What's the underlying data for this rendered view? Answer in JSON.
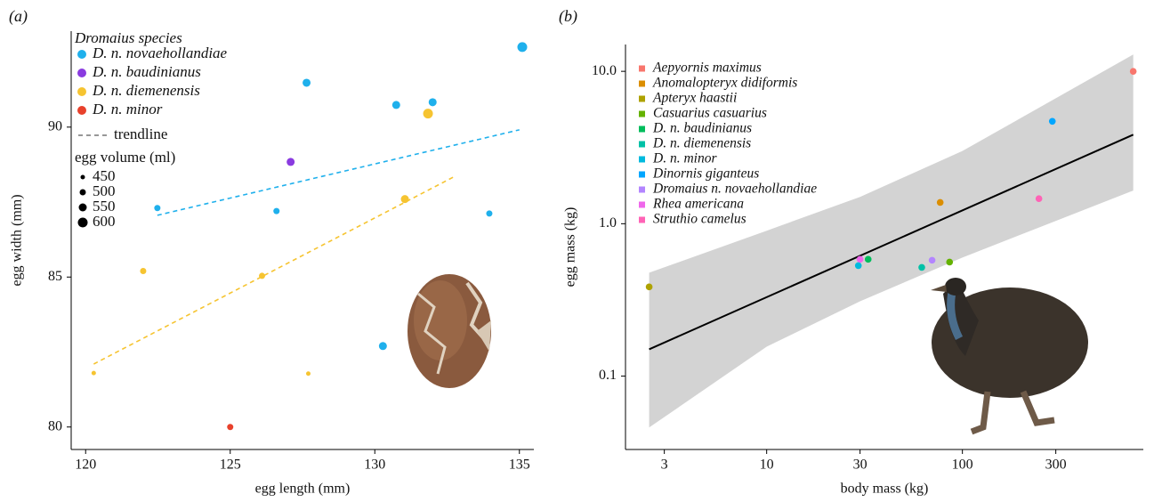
{
  "chart_data": [
    {
      "type": "scatter",
      "panel_label": "(a)",
      "x_label": "egg length (mm)",
      "y_label": "egg width (mm)",
      "xlim": [
        119.5,
        135.5
      ],
      "xticks": [
        120,
        125,
        130,
        135
      ],
      "ylim": [
        79.25,
        93.2
      ],
      "yticks": [
        80,
        85,
        90
      ],
      "legend_title": "Dromaius species",
      "trendline_label": "trendline",
      "series": [
        {
          "name": "D. n. novaehollandiae",
          "color": "#1fb0ec",
          "x": [
            135.1,
            127.64,
            130.74,
            132.0,
            122.48,
            126.6,
            133.96,
            130.28
          ],
          "values": [
            92.67,
            91.48,
            90.74,
            90.83,
            87.3,
            87.2,
            87.12,
            82.7
          ],
          "sizes": [
            600,
            550,
            550,
            550,
            500,
            500,
            500,
            550
          ],
          "trendline": {
            "x": [
              122.48,
              135.0
            ],
            "values": [
              87.06,
              89.91
            ]
          }
        },
        {
          "name": "D. n. baudinianus",
          "color": "#8a3be0",
          "x": [
            127.09
          ],
          "values": [
            88.84
          ],
          "sizes": [
            550
          ]
        },
        {
          "name": "D. n. diemenensis",
          "color": "#f6c431",
          "x": [
            131.84,
            131.04,
            126.1,
            121.99,
            127.7,
            120.28
          ],
          "values": [
            90.45,
            87.6,
            85.04,
            85.2,
            81.78,
            81.8
          ],
          "sizes": [
            600,
            550,
            500,
            500,
            450,
            450
          ],
          "trendline": {
            "x": [
              120.28,
              132.73
            ],
            "values": [
              82.1,
              88.34
            ]
          }
        },
        {
          "name": "D. n. minor",
          "color": "#e8412c",
          "x": [
            125.0
          ],
          "values": [
            80.0
          ],
          "sizes": [
            500
          ]
        }
      ],
      "size_legend": {
        "title": "egg volume (ml)",
        "values": [
          450,
          500,
          550,
          600
        ]
      }
    },
    {
      "type": "scatter",
      "panel_label": "(b)",
      "x_label": "body mass (kg)",
      "y_label": "egg mass (kg)",
      "log_x": true,
      "log_y": true,
      "xlim": [
        1.9,
        840
      ],
      "xticks": [
        3,
        10,
        30,
        100,
        300
      ],
      "ylim": [
        0.033,
        15
      ],
      "yticks": [
        0.1,
        {
          "value": 1,
          "label": "1.0"
        },
        {
          "value": 10,
          "label": "10.0"
        }
      ],
      "series": [
        {
          "name": "Aepyornis maximus",
          "color": "#F8766D",
          "x": [
            746
          ],
          "values": [
            10.0
          ]
        },
        {
          "name": "Anomalopteryx didiformis",
          "color": "#DB8E00",
          "x": [
            77
          ],
          "values": [
            1.38
          ]
        },
        {
          "name": "Apteryx haastii",
          "color": "#AEA200",
          "x": [
            2.51
          ],
          "values": [
            0.385
          ]
        },
        {
          "name": "Casuarius casuarius",
          "color": "#64B200",
          "x": [
            86
          ],
          "values": [
            0.56
          ]
        },
        {
          "name": "D. n. baudinianus",
          "color": "#00BD5C",
          "x": [
            33
          ],
          "values": [
            0.584
          ]
        },
        {
          "name": "D. n. diemenensis",
          "color": "#00C1A7",
          "x": [
            62
          ],
          "values": [
            0.517
          ]
        },
        {
          "name": "D. n. minor",
          "color": "#00BADE",
          "x": [
            29.4
          ],
          "values": [
            0.531
          ]
        },
        {
          "name": "Dinornis giganteus",
          "color": "#00A6FF",
          "x": [
            288
          ],
          "values": [
            4.7
          ]
        },
        {
          "name": "Dromaius n. novaehollandiae",
          "color": "#B385FF",
          "x": [
            70
          ],
          "values": [
            0.576
          ]
        },
        {
          "name": "Rhea americana",
          "color": "#EF67EB",
          "x": [
            30
          ],
          "values": [
            0.584
          ]
        },
        {
          "name": "Struthio camelus",
          "color": "#FF63B6",
          "x": [
            246
          ],
          "values": [
            1.46
          ]
        }
      ],
      "fit": {
        "x": [
          2.51,
          746
        ],
        "values": [
          0.15,
          3.84
        ]
      },
      "band": {
        "x": [
          2.51,
          10,
          30,
          100,
          746
        ],
        "upper": [
          0.477,
          0.9,
          1.5,
          3.0,
          12.9
        ],
        "lower": [
          0.046,
          0.156,
          0.31,
          0.6,
          1.65
        ]
      }
    }
  ]
}
